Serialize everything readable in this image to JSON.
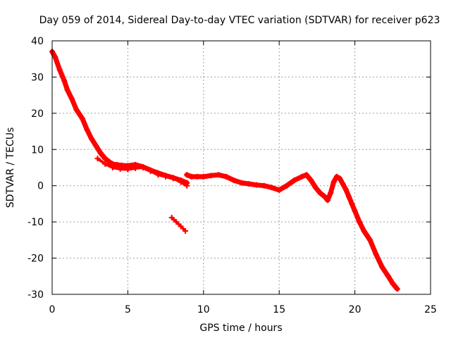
{
  "chart_data": {
    "type": "scatter",
    "title": "Day 059 of 2014, Sidereal Day-to-day VTEC variation (SDTVAR) for receiver p623",
    "xlabel": "GPS time / hours",
    "ylabel": "SDTVAR / TECUs",
    "xlim": [
      0,
      25
    ],
    "ylim": [
      -30,
      40
    ],
    "xticks": [
      0,
      5,
      10,
      15,
      20,
      25
    ],
    "yticks": [
      -30,
      -20,
      -10,
      0,
      10,
      20,
      30,
      40
    ],
    "xtick_labels": [
      "0",
      "5",
      "10",
      "15",
      "20",
      "25"
    ],
    "ytick_labels": [
      "-30",
      "-20",
      "-10",
      "0",
      "10",
      "20",
      "30",
      "40"
    ],
    "grid": true,
    "color": "#ff0000",
    "series": [
      {
        "name": "main",
        "x": [
          0.0,
          0.2,
          0.5,
          0.8,
          1.0,
          1.3,
          1.6,
          2.0,
          2.3,
          2.6,
          2.9,
          3.2,
          3.5,
          3.8,
          4.0,
          4.3,
          4.6,
          5.0,
          5.5,
          6.0,
          6.5,
          7.0,
          7.5,
          8.0,
          8.5,
          8.9
        ],
        "y": [
          37.0,
          35.5,
          32.0,
          29.0,
          26.5,
          24.0,
          21.0,
          18.5,
          15.5,
          13.0,
          11.0,
          9.0,
          7.5,
          6.5,
          6.0,
          5.8,
          5.6,
          5.5,
          5.8,
          5.2,
          4.3,
          3.5,
          2.8,
          2.2,
          1.5,
          0.8
        ],
        "width": 7
      },
      {
        "name": "main-lower",
        "x": [
          3.0,
          3.5,
          4.0,
          4.5,
          5.0,
          5.5,
          6.0,
          6.5,
          7.0,
          7.5,
          8.0,
          8.5,
          8.9
        ],
        "y": [
          7.5,
          6.0,
          5.0,
          4.6,
          4.5,
          4.8,
          5.0,
          4.0,
          3.0,
          2.5,
          2.0,
          1.0,
          0.0
        ],
        "width": 4
      },
      {
        "name": "segment-dip",
        "x": [
          7.9,
          8.2,
          8.5,
          8.8
        ],
        "y": [
          -8.8,
          -10.0,
          -11.2,
          -12.5
        ],
        "width": 4
      },
      {
        "name": "mid",
        "x": [
          8.9,
          9.2,
          9.6,
          10.0,
          10.5,
          11.0,
          11.5,
          12.0,
          12.5,
          13.0,
          13.5,
          14.0,
          14.5,
          15.0,
          15.5,
          16.0,
          16.5,
          16.8,
          17.1,
          17.4,
          17.7,
          18.0,
          18.2,
          18.4,
          18.6,
          18.8,
          19.0,
          19.2,
          19.4,
          19.6,
          19.8,
          20.0,
          20.3,
          20.6,
          21.0,
          21.4,
          21.8,
          22.2,
          22.5,
          22.8
        ],
        "y": [
          3.0,
          2.5,
          2.5,
          2.5,
          2.8,
          3.0,
          2.5,
          1.5,
          0.8,
          0.5,
          0.2,
          0.0,
          -0.5,
          -1.2,
          0.0,
          1.5,
          2.5,
          3.0,
          1.5,
          -0.5,
          -2.0,
          -3.0,
          -4.0,
          -2.0,
          1.0,
          2.5,
          2.0,
          0.5,
          -1.0,
          -3.0,
          -5.0,
          -7.0,
          -10.0,
          -12.5,
          -15.0,
          -19.0,
          -22.5,
          -25.0,
          -27.0,
          -28.5
        ],
        "width": 7
      }
    ]
  }
}
